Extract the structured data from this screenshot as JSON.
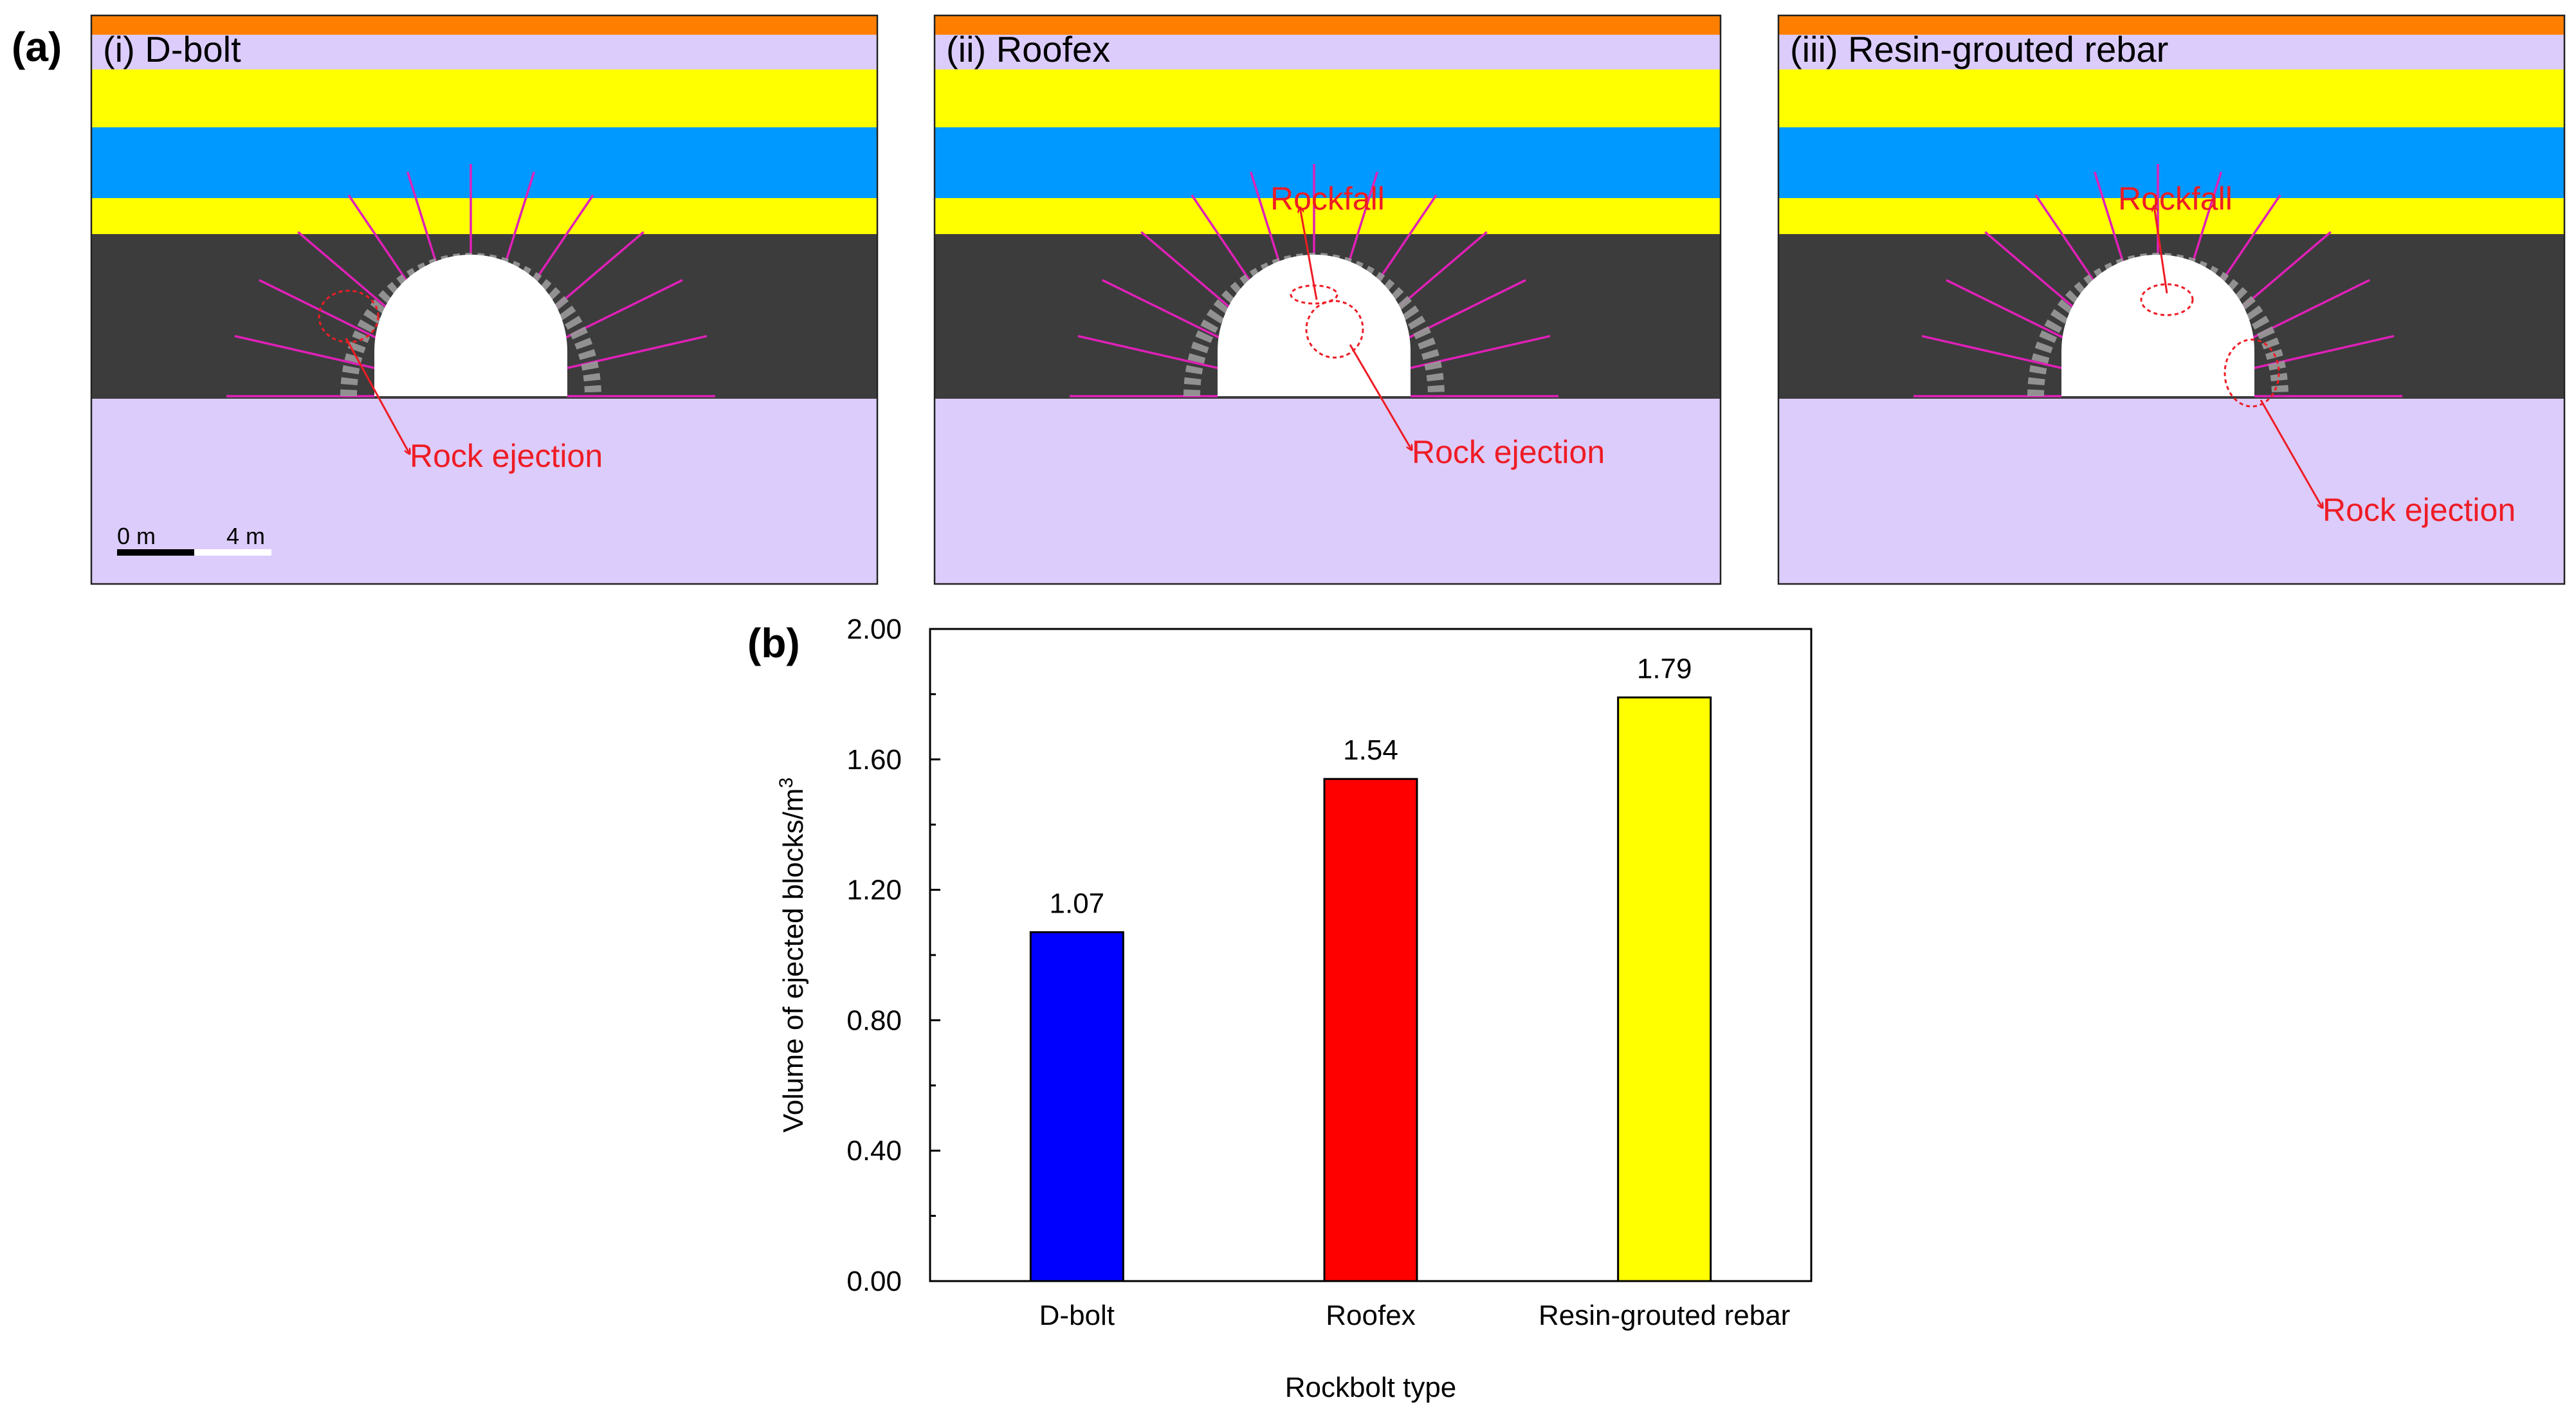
{
  "figure": {
    "part_a_label": "(a)",
    "part_b_label": "(b)"
  },
  "panels": [
    {
      "title": "(i) D-bolt",
      "annotations": [
        "Rock ejection"
      ],
      "scale_bar": {
        "start": "0 m",
        "end": "4 m"
      }
    },
    {
      "title": "(ii) Roofex",
      "annotations": [
        "Rockfall",
        "Rock ejection"
      ]
    },
    {
      "title": "(iii) Resin-grouted rebar",
      "annotations": [
        "Rockfall",
        "Rock ejection"
      ]
    }
  ],
  "colors": {
    "top_layer": "#fe7f00",
    "lavender": "#dcccfb",
    "yellow": "#ffff00",
    "blue": "#0099ff",
    "coal": "#3c3c3c",
    "bolt": "#e020b8",
    "annotation": "#ee1c25",
    "bar_dbolt": "#0000ff",
    "bar_roofex": "#ff0000",
    "bar_rebar": "#ffff00"
  },
  "chart_data": {
    "type": "bar",
    "categories": [
      "D-bolt",
      "Roofex",
      "Resin-grouted rebar"
    ],
    "values": [
      1.07,
      1.54,
      1.79
    ],
    "value_labels": [
      "1.07",
      "1.54",
      "1.79"
    ],
    "ylabel": "Volume of ejected blocks/m",
    "ylabel_superscript": "3",
    "xlabel": "Rockbolt type",
    "ylim": [
      0,
      2.0
    ],
    "yticks": [
      "0.00",
      "0.40",
      "0.80",
      "1.20",
      "1.60",
      "2.00"
    ],
    "minor_ticks": true,
    "legend": "none",
    "grid": false
  }
}
